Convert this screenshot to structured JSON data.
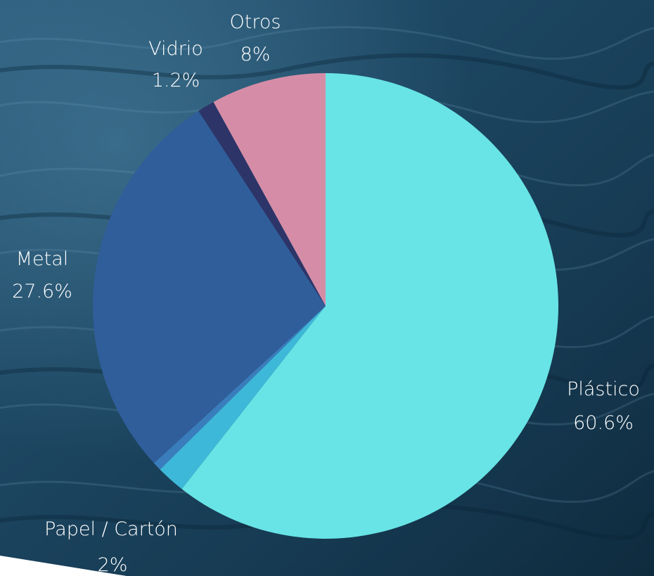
{
  "chart_data": {
    "type": "pie",
    "slices": [
      {
        "label": "Plástico",
        "value_label": "60.6%",
        "value": 60.6,
        "color": "#68E4E6"
      },
      {
        "label": "Papel / Cartón",
        "value_label": "2%",
        "value": 2.0,
        "color": "#3EB8D8"
      },
      {
        "label": "",
        "value_label": "",
        "value": 0.6,
        "color": "#3A7DBC"
      },
      {
        "label": "Metal",
        "value_label": "27.6%",
        "value": 27.6,
        "color": "#305E9A"
      },
      {
        "label": "Vidrio",
        "value_label": "1.2%",
        "value": 1.2,
        "color": "#2D3468"
      },
      {
        "label": "Otros",
        "value_label": "8%",
        "value": 8.0,
        "color": "#D58DA7"
      }
    ],
    "start": "12-o'clock",
    "direction": "clockwise",
    "legend": "none"
  },
  "colors": {
    "ocean_dark": "#0E2A3D",
    "ocean_mid": "#1F4C68",
    "ocean_light": "#3B7190",
    "label": "#FFFFFF"
  }
}
